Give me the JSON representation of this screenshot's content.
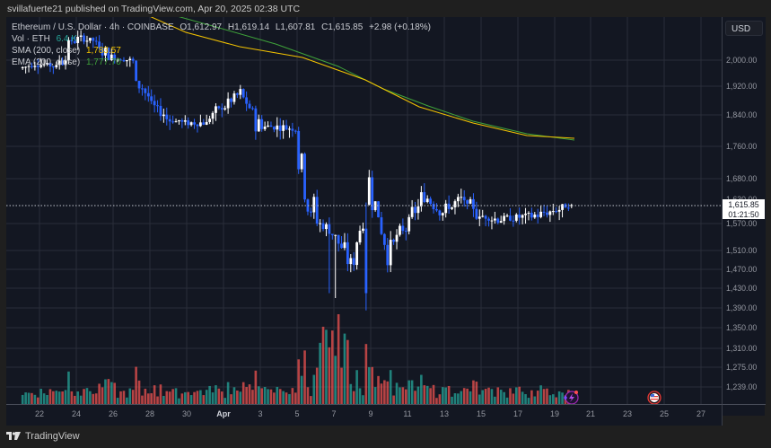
{
  "header": {
    "published_line": "svillafuerte21 published on TradingView.com, Apr 20, 2025 02:38 UTC"
  },
  "legend": {
    "symbol": "Ethereum / U.S. Dollar · 4h · COINBASE",
    "open": "O1,612.97",
    "high": "H1,619.14",
    "low": "L1,607.81",
    "close": "C1,615.85",
    "change": "+2.98 (+0.18%)",
    "volume_label": "Vol · ETH",
    "volume_value": "6.4 K",
    "sma_label": "SMA (200, close)",
    "sma_value": "1,783.57",
    "ema_label": "EMA (200, close)",
    "ema_value": "1,777.70"
  },
  "price_axis": {
    "currency_button": "USD",
    "labels": [
      "2,000.00",
      "1,920.00",
      "1,840.00",
      "1,760.00",
      "1,680.00",
      "1,630.00",
      "1,570.00",
      "1,510.00",
      "1,470.00",
      "1,430.00",
      "1,390.00",
      "1,350.00",
      "1,310.00",
      "1,275.00",
      "1,239.00"
    ],
    "current_price": "1,615.85",
    "countdown": "01:21:50"
  },
  "time_axis": {
    "labels": [
      "22",
      "24",
      "26",
      "28",
      "30",
      "Apr",
      "3",
      "5",
      "7",
      "9",
      "11",
      "13",
      "15",
      "17",
      "19",
      "21",
      "23",
      "25",
      "27"
    ]
  },
  "footer": {
    "brand": "TradingView"
  },
  "colors": {
    "background": "#131722",
    "up_candle": "#ffffff",
    "down_candle": "#2962ff",
    "volume_up": "#26a69a",
    "volume_down": "#ef5350",
    "sma": "#f5c400",
    "ema": "#3fa33a",
    "grid": "#2a2e39"
  },
  "chart_data": {
    "type": "candlestick",
    "title": "Ethereum / U.S. Dollar · 4h · COINBASE",
    "timeframe": "4h",
    "x_ticks": [
      "Mar 22",
      "Mar 24",
      "Mar 26",
      "Mar 28",
      "Mar 30",
      "Apr 1",
      "Apr 3",
      "Apr 5",
      "Apr 7",
      "Apr 9",
      "Apr 11",
      "Apr 13",
      "Apr 15",
      "Apr 17",
      "Apr 19",
      "Apr 21",
      "Apr 23",
      "Apr 25",
      "Apr 27"
    ],
    "ylim": [
      1220,
      2060
    ],
    "y_scale": "log",
    "last_bar": {
      "open": 1612.97,
      "high": 1619.14,
      "low": 1607.81,
      "close": 1615.85,
      "change": 2.98,
      "change_pct": 0.18
    },
    "approx_daily_close": [
      {
        "date": "Mar 21",
        "close": 1975
      },
      {
        "date": "Mar 22",
        "close": 1990
      },
      {
        "date": "Mar 23",
        "close": 1980
      },
      {
        "date": "Mar 24",
        "close": 2070
      },
      {
        "date": "Mar 25",
        "close": 2060
      },
      {
        "date": "Mar 26",
        "close": 2010
      },
      {
        "date": "Mar 27",
        "close": 2000
      },
      {
        "date": "Mar 28",
        "close": 1880
      },
      {
        "date": "Mar 29",
        "close": 1830
      },
      {
        "date": "Mar 30",
        "close": 1820
      },
      {
        "date": "Mar 31",
        "close": 1820
      },
      {
        "date": "Apr 1",
        "close": 1860
      },
      {
        "date": "Apr 2",
        "close": 1900
      },
      {
        "date": "Apr 3",
        "close": 1810
      },
      {
        "date": "Apr 4",
        "close": 1810
      },
      {
        "date": "Apr 5",
        "close": 1805
      },
      {
        "date": "Apr 6",
        "close": 1580
      },
      {
        "date": "Apr 7",
        "close": 1550
      },
      {
        "date": "Apr 8",
        "close": 1480
      },
      {
        "date": "Apr 9",
        "close": 1670
      },
      {
        "date": "Apr 10",
        "close": 1520
      },
      {
        "date": "Apr 11",
        "close": 1560
      },
      {
        "date": "Apr 12",
        "close": 1640
      },
      {
        "date": "Apr 13",
        "close": 1600
      },
      {
        "date": "Apr 14",
        "close": 1630
      },
      {
        "date": "Apr 15",
        "close": 1590
      },
      {
        "date": "Apr 16",
        "close": 1580
      },
      {
        "date": "Apr 17",
        "close": 1585
      },
      {
        "date": "Apr 18",
        "close": 1590
      },
      {
        "date": "Apr 19",
        "close": 1600
      },
      {
        "date": "Apr 20",
        "close": 1615.85
      }
    ],
    "period_extremes": {
      "high": 2100,
      "low": 1385
    },
    "series": [
      {
        "name": "SMA (200, close)",
        "color": "#f5c400",
        "last_value": 1783.57
      },
      {
        "name": "EMA (200, close)",
        "color": "#3fa33a",
        "last_value": 1777.7
      }
    ],
    "volume": {
      "name": "Vol · ETH",
      "last_value": "6.4 K",
      "peak_date": "Apr 7"
    },
    "grid": true,
    "legend_position": "top-left"
  }
}
